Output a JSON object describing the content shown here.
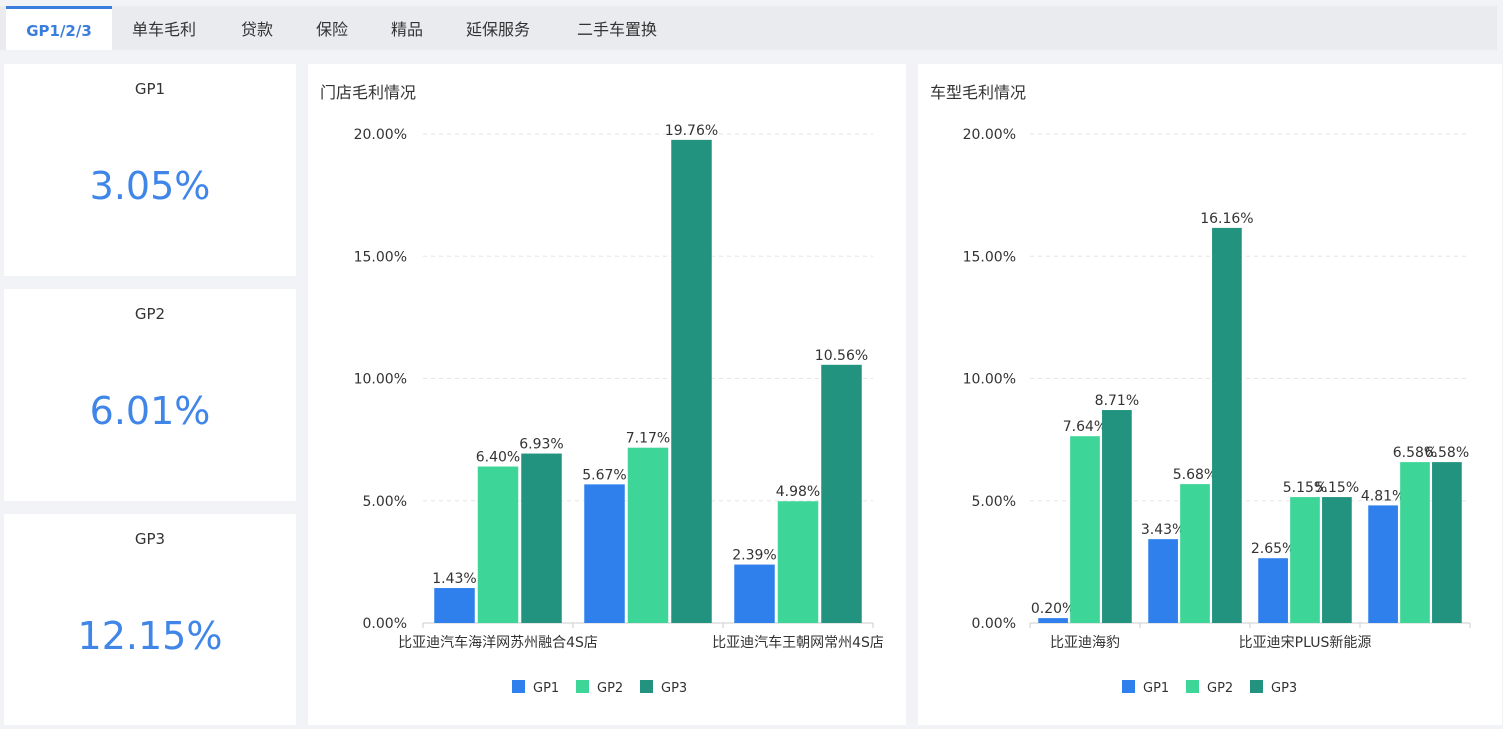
{
  "tabs": [
    {
      "label": "GP1/2/3"
    },
    {
      "label": "单车毛利"
    },
    {
      "label": "贷款"
    },
    {
      "label": "保险"
    },
    {
      "label": "精品"
    },
    {
      "label": "延保服务"
    },
    {
      "label": "二手车置换"
    }
  ],
  "kpis": [
    {
      "title": "GP1",
      "value": "3.05%"
    },
    {
      "title": "GP2",
      "value": "6.01%"
    },
    {
      "title": "GP3",
      "value": "12.15%"
    }
  ],
  "colors": {
    "GP1": "#2f80ed",
    "GP2": "#3ed598",
    "GP3": "#22937e"
  },
  "chart_data": [
    {
      "type": "bar",
      "title": "门店毛利情况",
      "categories": [
        "比亚迪汽车海洋网苏州融合4S店",
        "",
        "比亚迪汽车王朝网常州4S店"
      ],
      "category_labels": [
        "比亚迪汽车海洋网苏州融合4S店",
        "比亚迪汽车王朝网常州4S店"
      ],
      "series": [
        {
          "name": "GP1",
          "values": [
            1.43,
            5.67,
            2.39
          ]
        },
        {
          "name": "GP2",
          "values": [
            6.4,
            7.17,
            4.98
          ]
        },
        {
          "name": "GP3",
          "values": [
            6.93,
            19.76,
            10.56
          ]
        }
      ],
      "value_labels": [
        [
          "1.43%",
          "5.67%",
          "2.39%"
        ],
        [
          "6.40%",
          "7.17%",
          "4.98%"
        ],
        [
          "6.93%",
          "19.76%",
          "10.56%"
        ]
      ],
      "yticks": [
        "0.00%",
        "5.00%",
        "10.00%",
        "15.00%",
        "20.00%"
      ],
      "ylim": [
        0,
        20
      ],
      "legend": [
        "GP1",
        "GP2",
        "GP3"
      ],
      "legend_position": "bottom-center",
      "grid": true
    },
    {
      "type": "bar",
      "title": "车型毛利情况",
      "categories": [
        "比亚迪海豹",
        "",
        "比亚迪宋PLUS新能源",
        ""
      ],
      "category_labels": [
        "比亚迪海豹",
        "比亚迪宋PLUS新能源"
      ],
      "series": [
        {
          "name": "GP1",
          "values": [
            0.2,
            3.43,
            2.65,
            4.81
          ]
        },
        {
          "name": "GP2",
          "values": [
            7.64,
            5.68,
            5.15,
            6.58
          ]
        },
        {
          "name": "GP3",
          "values": [
            8.71,
            16.16,
            5.15,
            6.58
          ]
        }
      ],
      "value_labels": [
        [
          "0.20%",
          "3.43%",
          "2.65%",
          "4.81%"
        ],
        [
          "7.64%",
          "5.68%",
          "5.15%",
          "6.58%"
        ],
        [
          "8.71%",
          "16.16%",
          "5.15%",
          "6.58%"
        ]
      ],
      "yticks": [
        "0.00%",
        "5.00%",
        "10.00%",
        "15.00%",
        "20.00%"
      ],
      "ylim": [
        0,
        20
      ],
      "legend": [
        "GP1",
        "GP2",
        "GP3"
      ],
      "legend_position": "bottom-center",
      "grid": true
    }
  ]
}
